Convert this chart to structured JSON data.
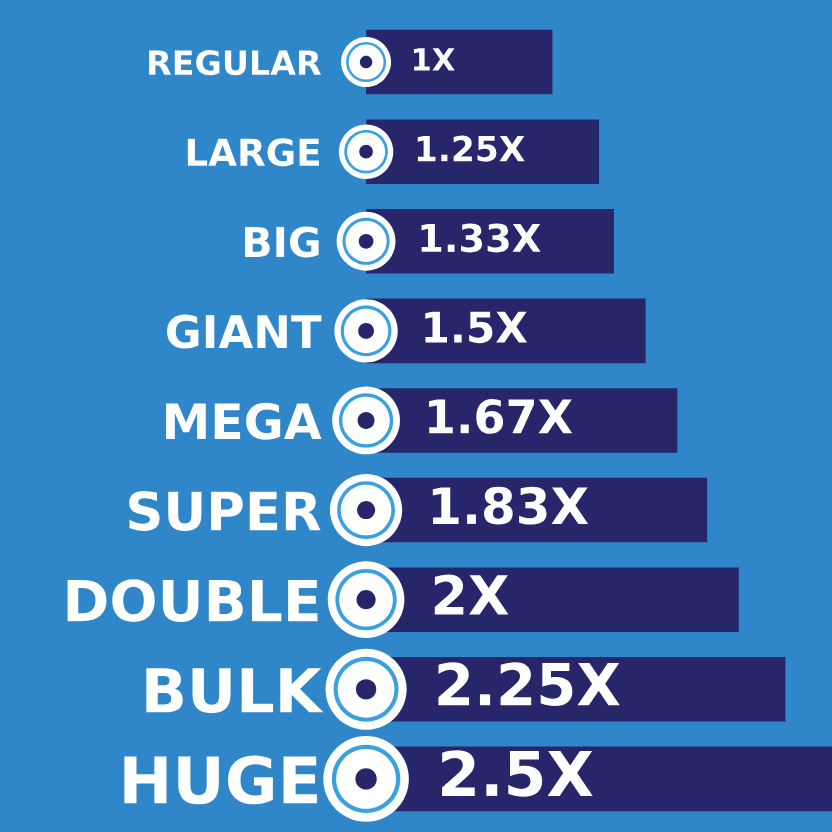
{
  "chart_data": {
    "type": "bar",
    "orientation": "horizontal",
    "categories": [
      "REGULAR",
      "LARGE",
      "BIG",
      "GIANT",
      "MEGA",
      "SUPER",
      "DOUBLE",
      "BULK",
      "HUGE"
    ],
    "values": [
      1,
      1.25,
      1.33,
      1.5,
      1.67,
      1.83,
      2,
      2.25,
      2.5
    ],
    "value_labels": [
      "1X",
      "1.25X",
      "1.33X",
      "1.5X",
      "1.67X",
      "1.83X",
      "2X",
      "2.25X",
      "2.5X"
    ],
    "color": "#27266b",
    "tick_labels": "y"
  }
}
